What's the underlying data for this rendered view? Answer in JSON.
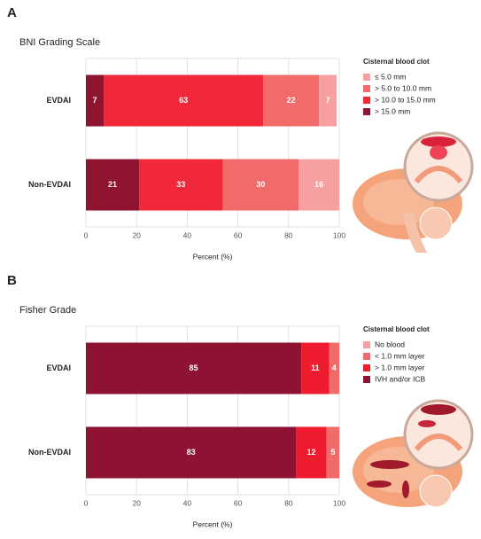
{
  "chart_data": [
    {
      "type": "stacked_bar_horizontal",
      "panel": "A",
      "title": "BNI Grading Scale",
      "xlabel": "Percent (%)",
      "legend_title": "Cisternal blood clot",
      "categories": [
        "EVDAI",
        "Non-EVDAI"
      ],
      "series": [
        {
          "name": "≤ 5.0 mm",
          "color": "#f7a0a2",
          "values": [
            7,
            16
          ]
        },
        {
          "name": "> 5.0 to 10.0 mm",
          "color": "#f26b6b",
          "values": [
            22,
            30
          ]
        },
        {
          "name": "> 10.0 to 15.0 mm",
          "color": "#f0283a",
          "values": [
            63,
            33
          ]
        },
        {
          "name": "> 15.0 mm",
          "color": "#8e1430",
          "values": [
            7,
            21
          ]
        }
      ],
      "xlim": [
        0,
        100
      ],
      "xticks": [
        0,
        20,
        40,
        60,
        80,
        100
      ],
      "grid": true
    },
    {
      "type": "stacked_bar_horizontal",
      "panel": "B",
      "title": "Fisher Grade",
      "xlabel": "Percent (%)",
      "legend_title": "Cisternal blood clot",
      "categories": [
        "EVDAI",
        "Non-EVDAI"
      ],
      "series": [
        {
          "name": "No blood",
          "color": "#f7a0a2",
          "values": [
            0,
            0
          ]
        },
        {
          "name": "< 1.0 mm layer",
          "color": "#f26b6b",
          "values": [
            4,
            5
          ]
        },
        {
          "name": "> 1.0 mm layer",
          "color": "#ee1c2e",
          "values": [
            11,
            12
          ]
        },
        {
          "name": "IVH and/or ICB",
          "color": "#8e1232",
          "values": [
            85,
            83
          ]
        }
      ],
      "xlim": [
        0,
        100
      ],
      "xticks": [
        0,
        20,
        40,
        60,
        80,
        100
      ],
      "grid": true
    }
  ]
}
